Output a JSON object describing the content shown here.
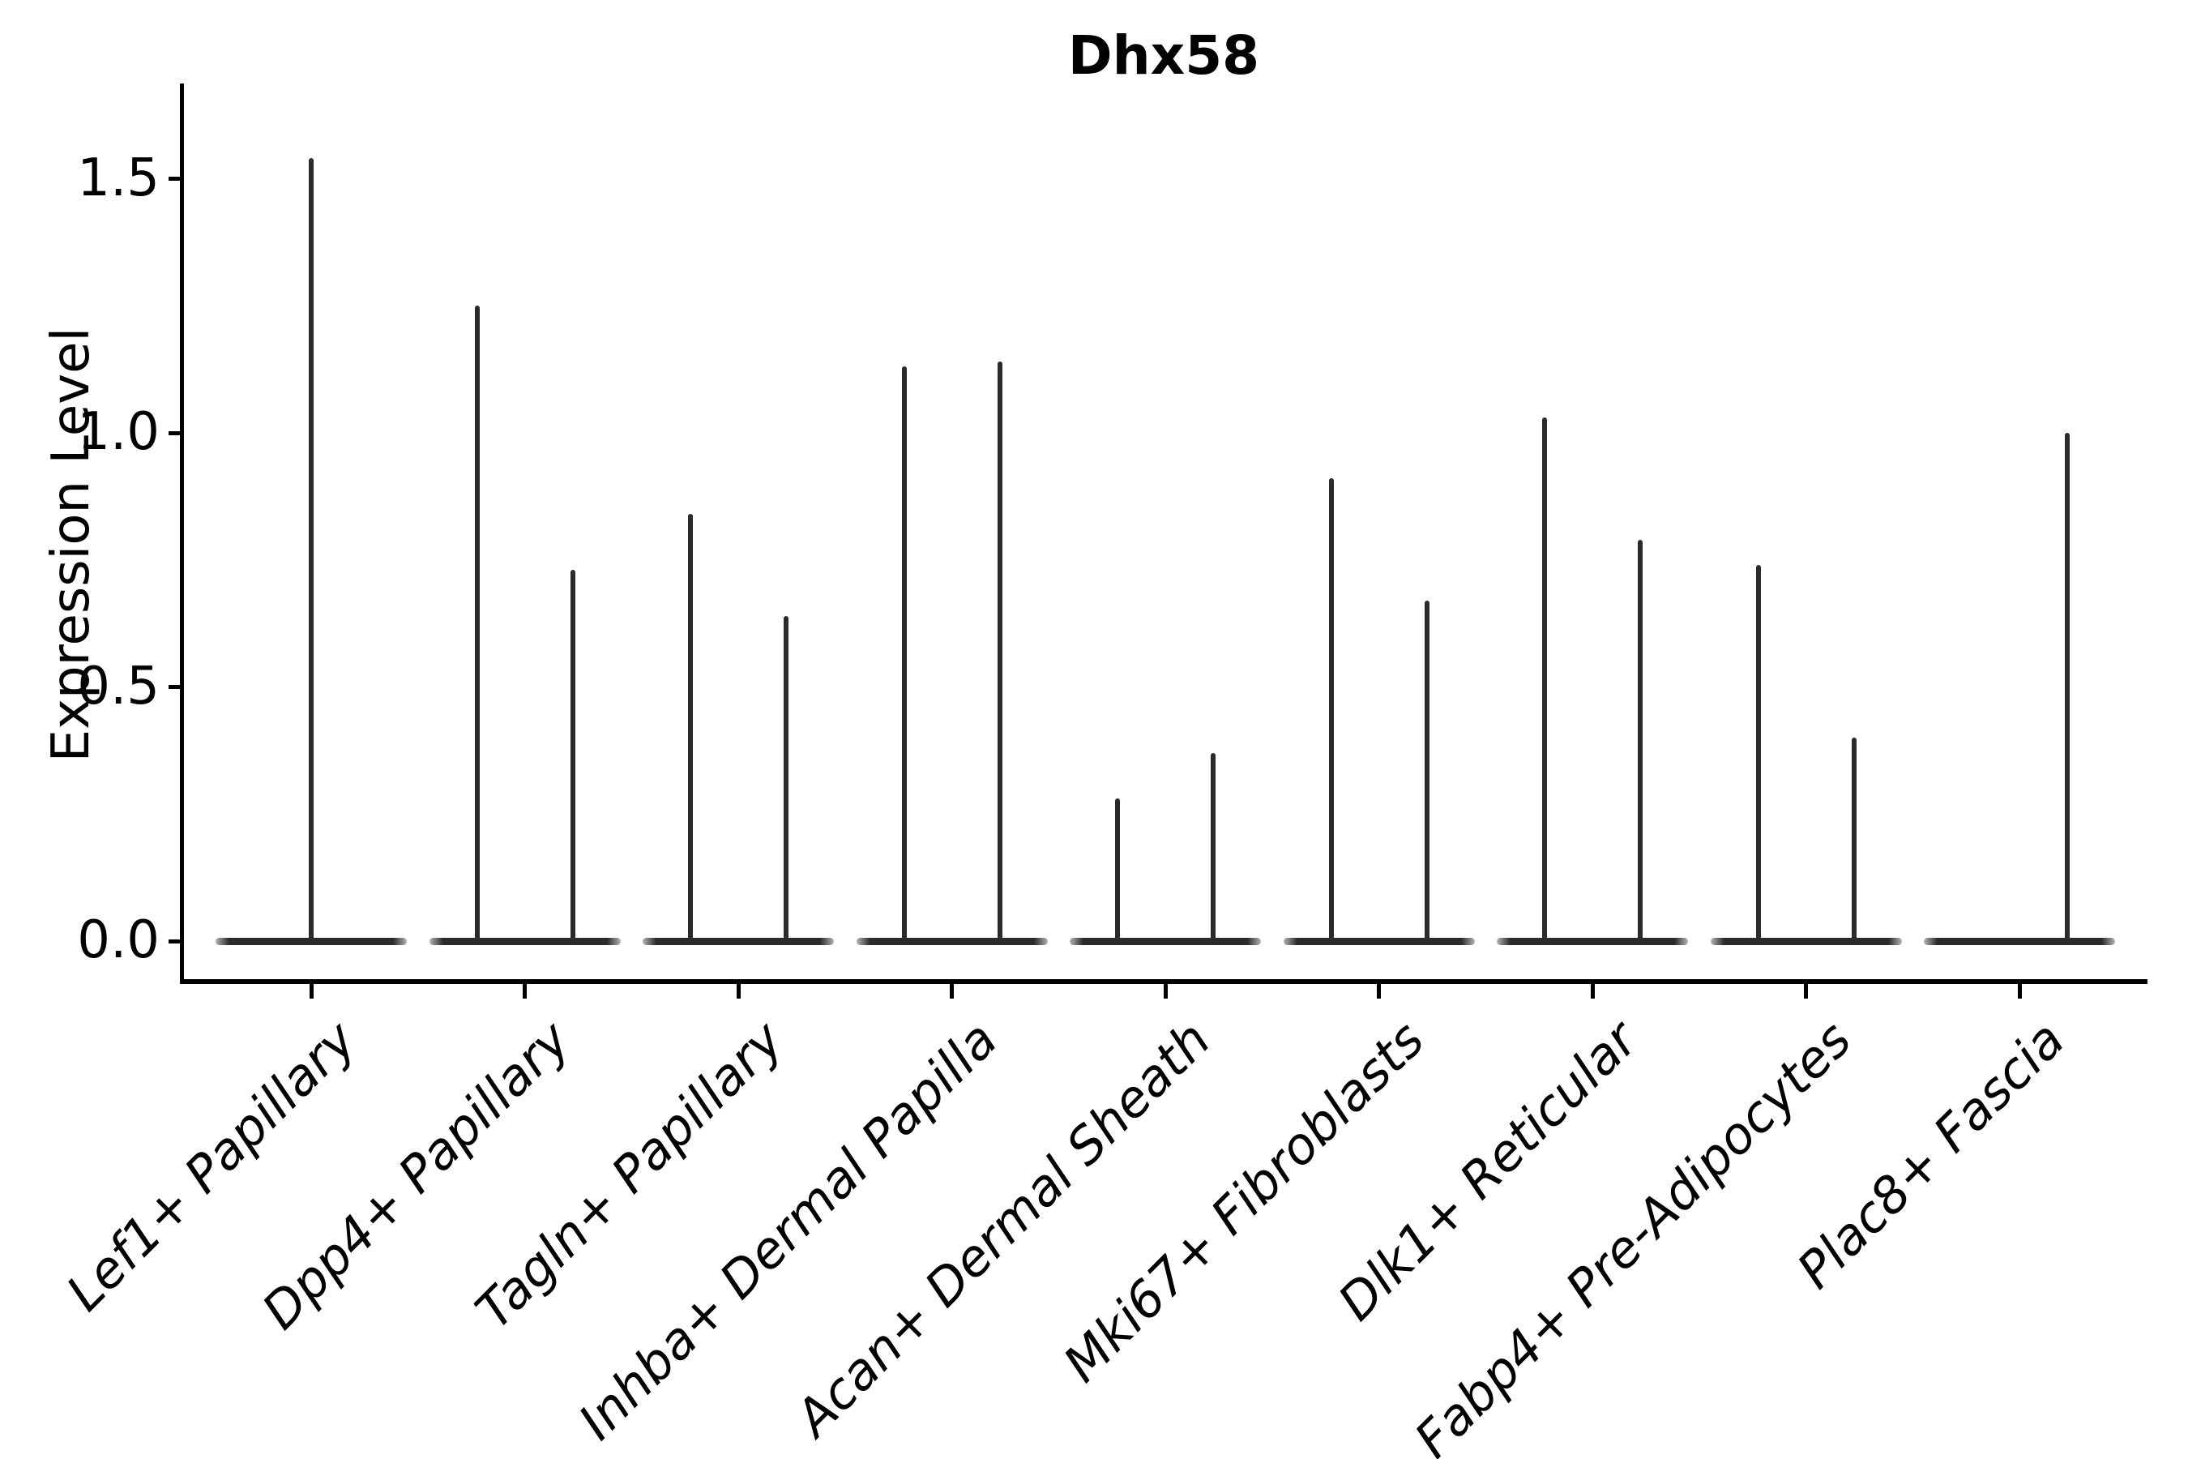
{
  "title": "Dhx58",
  "y_axis": {
    "label": "Expression Level",
    "tick_labels": [
      "0.0",
      "0.5",
      "1.0",
      "1.5"
    ]
  },
  "x_axis": {
    "tick_labels": [
      "Lef1+ Papillary",
      "Dpp4+ Papillary",
      "Tagln+ Papillary",
      "Inhba+ Dermal Papilla",
      "Acan+ Dermal Sheath",
      "Mki67+ Fibroblasts",
      "Dlk1+ Reticular",
      "Fabp4+ Pre-Adipocytes",
      "Plac8+ Fascia"
    ]
  },
  "chart_data": {
    "type": "violin",
    "title": "Dhx58",
    "xlabel": "",
    "ylabel": "Expression Level",
    "ylim": [
      0,
      1.69
    ],
    "yticks": [
      0.0,
      0.5,
      1.0,
      1.5
    ],
    "grid": false,
    "legend": "none",
    "line_color": "#2b2b2b",
    "description": "Needle-thin violins collapsed at 0 with a horizontal base at y=0; each violin shown as a vertical spike reaching its maximum expression value. Categories with two groups show two spikes (left/right of tick); single-group categories show one spike.",
    "categories": [
      "Lef1+ Papillary",
      "Dpp4+ Papillary",
      "Tagln+ Papillary",
      "Inhba+ Dermal Papilla",
      "Acan+ Dermal Sheath",
      "Mki67+ Fibroblasts",
      "Dlk1+ Reticular",
      "Fabp4+ Pre-Adipocytes",
      "Plac8+ Fascia"
    ],
    "violins": [
      {
        "category": "Lef1+ Papillary",
        "spikes": [
          {
            "position": "center",
            "max": 1.54
          }
        ]
      },
      {
        "category": "Dpp4+ Papillary",
        "spikes": [
          {
            "position": "left",
            "max": 1.25
          },
          {
            "position": "right",
            "max": 0.73
          }
        ]
      },
      {
        "category": "Tagln+ Papillary",
        "spikes": [
          {
            "position": "left",
            "max": 0.84
          },
          {
            "position": "right",
            "max": 0.64
          }
        ]
      },
      {
        "category": "Inhba+ Dermal Papilla",
        "spikes": [
          {
            "position": "left",
            "max": 1.13
          },
          {
            "position": "right",
            "max": 1.14
          }
        ]
      },
      {
        "category": "Acan+ Dermal Sheath",
        "spikes": [
          {
            "position": "left",
            "max": 0.28
          },
          {
            "position": "right",
            "max": 0.37
          }
        ]
      },
      {
        "category": "Mki67+ Fibroblasts",
        "spikes": [
          {
            "position": "left",
            "max": 0.91
          },
          {
            "position": "right",
            "max": 0.67
          }
        ]
      },
      {
        "category": "Dlk1+ Reticular",
        "spikes": [
          {
            "position": "left",
            "max": 1.03
          },
          {
            "position": "right",
            "max": 0.79
          }
        ]
      },
      {
        "category": "Fabp4+ Pre-Adipocytes",
        "spikes": [
          {
            "position": "left",
            "max": 0.74
          },
          {
            "position": "right",
            "max": 0.4
          }
        ]
      },
      {
        "category": "Plac8+ Fascia",
        "spikes": [
          {
            "position": "right",
            "max": 1.0
          }
        ]
      }
    ]
  }
}
